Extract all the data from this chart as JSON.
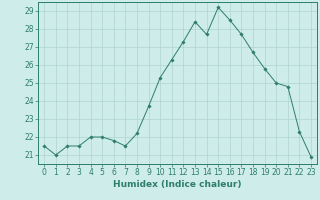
{
  "x": [
    0,
    1,
    2,
    3,
    4,
    5,
    6,
    7,
    8,
    9,
    10,
    11,
    12,
    13,
    14,
    15,
    16,
    17,
    18,
    19,
    20,
    21,
    22,
    23
  ],
  "y": [
    21.5,
    21.0,
    21.5,
    21.5,
    22.0,
    22.0,
    21.8,
    21.5,
    22.2,
    23.7,
    25.3,
    26.3,
    27.3,
    28.4,
    27.7,
    29.2,
    28.5,
    27.7,
    26.7,
    25.8,
    25.0,
    24.8,
    22.3,
    20.9
  ],
  "line_color": "#2e7d6e",
  "marker": "D",
  "marker_size": 1.8,
  "bg_color": "#ceecea",
  "grid_color": "#b0d4d0",
  "xlabel": "Humidex (Indice chaleur)",
  "xlim": [
    -0.5,
    23.5
  ],
  "ylim": [
    20.5,
    29.5
  ],
  "yticks": [
    21,
    22,
    23,
    24,
    25,
    26,
    27,
    28,
    29
  ],
  "xticks": [
    0,
    1,
    2,
    3,
    4,
    5,
    6,
    7,
    8,
    9,
    10,
    11,
    12,
    13,
    14,
    15,
    16,
    17,
    18,
    19,
    20,
    21,
    22,
    23
  ],
  "tick_fontsize": 5.5,
  "xlabel_fontsize": 6.5,
  "spine_color": "#2e7d6e"
}
